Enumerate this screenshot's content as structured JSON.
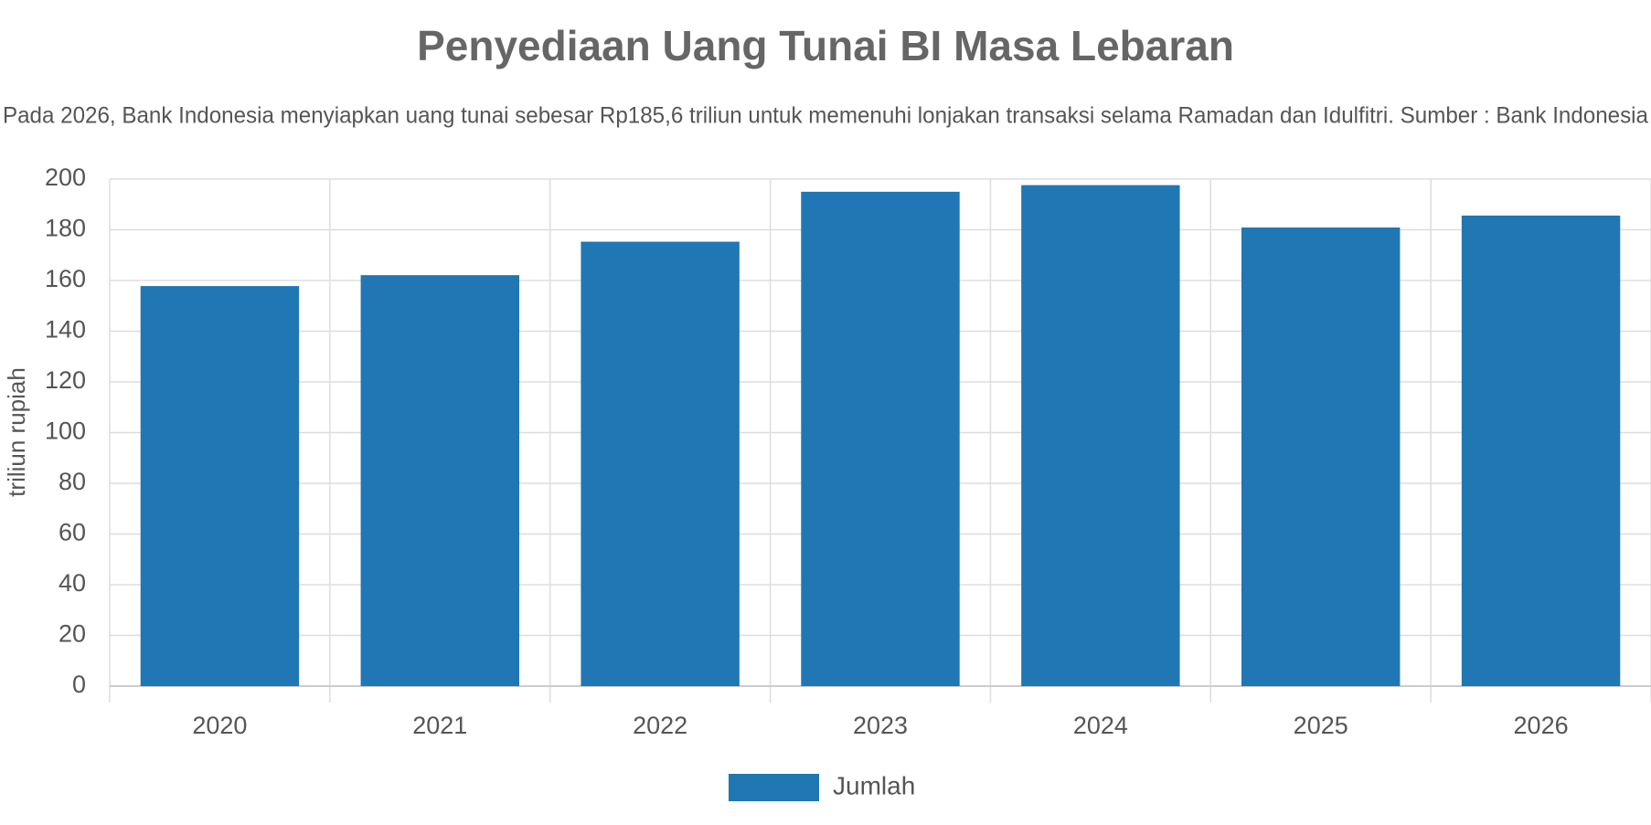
{
  "chart_data": {
    "type": "bar",
    "title": "Penyediaan Uang Tunai BI Masa Lebaran",
    "subtitle": "Pada 2026, Bank Indonesia menyiapkan uang tunai sebesar Rp185,6 triliun untuk memenuhi lonjakan transaksi selama Ramadan dan Idulfitri. Sumber : Bank Indonesia",
    "y_label": "triliun rupiah",
    "categories": [
      "2020",
      "2021",
      "2022",
      "2023",
      "2024",
      "2025",
      "2026"
    ],
    "series": [
      {
        "name": "Jumlah",
        "color": "#2077b4",
        "values": [
          157.8,
          162.1,
          175.3,
          195,
          197.6,
          180.9,
          185.6
        ]
      }
    ],
    "ylim": [
      0,
      200
    ],
    "yticks": [
      0,
      20,
      40,
      60,
      80,
      100,
      120,
      140,
      160,
      180,
      200
    ],
    "grid": true
  }
}
